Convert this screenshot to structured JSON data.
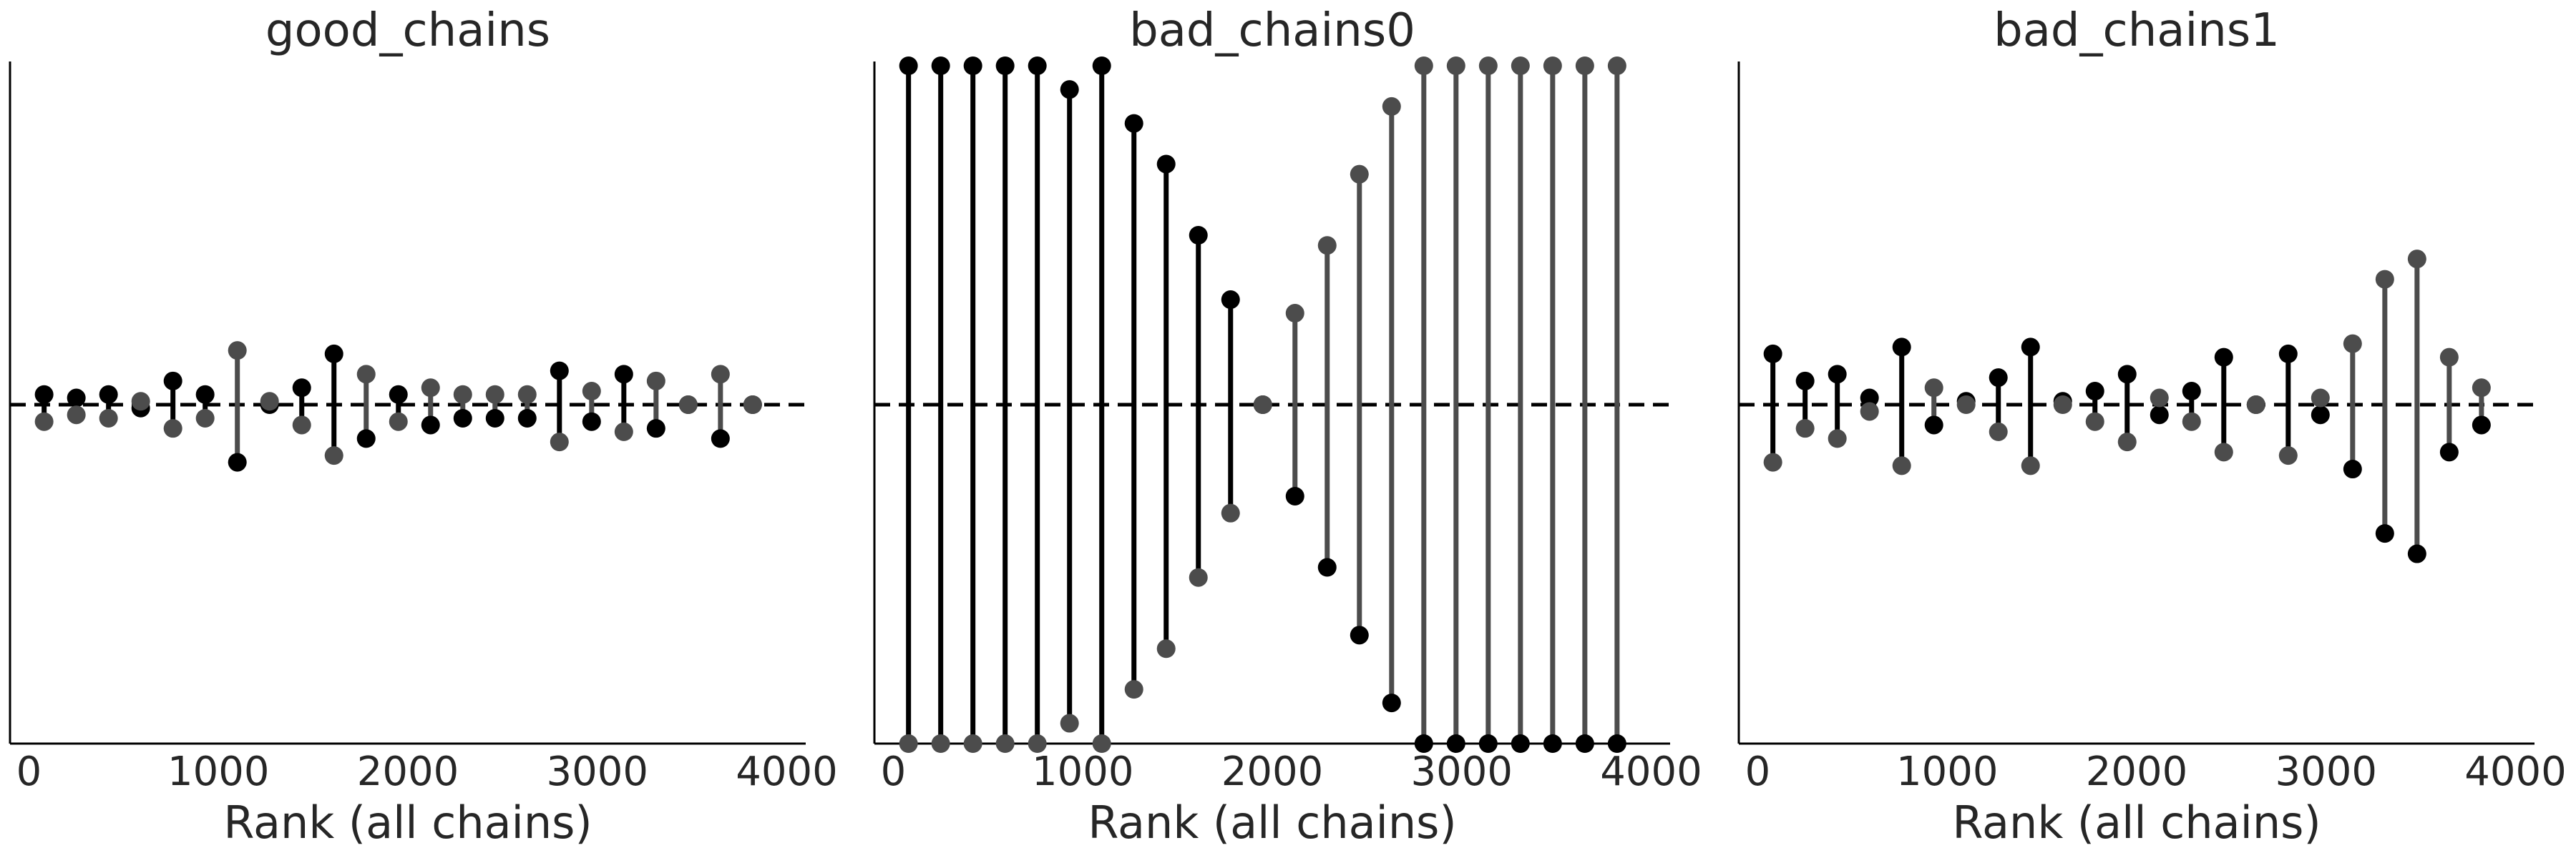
{
  "colors": {
    "chain0": "#000000",
    "chain1": "#4c4c4c",
    "reference": "#000000",
    "axis": "#000000",
    "text": "#262626"
  },
  "chart_data": [
    {
      "type": "scatter",
      "title": "good_chains",
      "xlabel": "Rank (all chains)",
      "ylabel": "",
      "xlim": [
        -100,
        4100
      ],
      "ylim": [
        -1,
        1
      ],
      "xticks": [
        "0",
        "1000",
        "2000",
        "3000",
        "4000"
      ],
      "reference_line": 0,
      "x": [
        80,
        250,
        420,
        590,
        760,
        930,
        1100,
        1270,
        1440,
        1610,
        1780,
        1950,
        2120,
        2290,
        2460,
        2630,
        2800,
        2970,
        3140,
        3310,
        3480,
        3650,
        3820
      ],
      "series": [
        {
          "values": [
            0.03,
            0.02,
            0.03,
            -0.01,
            0.07,
            0.03,
            -0.17,
            0.0,
            0.05,
            0.15,
            -0.1,
            0.03,
            -0.06,
            -0.04,
            -0.04,
            -0.04,
            0.1,
            -0.05,
            0.09,
            -0.07,
            0.0,
            -0.1,
            0.0
          ]
        },
        {
          "values": [
            -0.05,
            -0.03,
            -0.04,
            0.01,
            -0.07,
            -0.04,
            0.16,
            0.01,
            -0.06,
            -0.15,
            0.09,
            -0.05,
            0.05,
            0.03,
            0.03,
            0.03,
            -0.11,
            0.04,
            -0.08,
            0.07,
            0.0,
            0.09,
            0.0
          ]
        }
      ]
    },
    {
      "type": "scatter",
      "title": "bad_chains0",
      "xlabel": "Rank (all chains)",
      "ylabel": "",
      "xlim": [
        -100,
        4100
      ],
      "ylim": [
        -1,
        1
      ],
      "xticks": [
        "0",
        "1000",
        "2000",
        "3000",
        "4000"
      ],
      "reference_line": 0,
      "x": [
        80,
        250,
        420,
        590,
        760,
        930,
        1100,
        1270,
        1440,
        1610,
        1780,
        1950,
        2120,
        2290,
        2460,
        2630,
        2800,
        2970,
        3140,
        3310,
        3480,
        3650,
        3820
      ],
      "series": [
        {
          "values": [
            1.0,
            1.0,
            1.0,
            1.0,
            1.0,
            0.93,
            1.0,
            0.83,
            0.71,
            0.5,
            0.31,
            0.0,
            -0.27,
            -0.48,
            -0.68,
            -0.88,
            -1.0,
            -1.0,
            -1.0,
            -1.0,
            -1.0,
            -1.0,
            -1.0
          ]
        },
        {
          "values": [
            -1.0,
            -1.0,
            -1.0,
            -1.0,
            -1.0,
            -0.94,
            -1.0,
            -0.84,
            -0.72,
            -0.51,
            -0.32,
            0.0,
            0.27,
            0.47,
            0.68,
            0.88,
            1.0,
            1.0,
            1.0,
            1.0,
            1.0,
            1.0,
            1.0
          ]
        }
      ]
    },
    {
      "type": "scatter",
      "title": "bad_chains1",
      "xlabel": "Rank (all chains)",
      "ylabel": "",
      "xlim": [
        -100,
        4100
      ],
      "ylim": [
        -1,
        1
      ],
      "xticks": [
        "0",
        "1000",
        "2000",
        "3000",
        "4000"
      ],
      "reference_line": 0,
      "x": [
        80,
        250,
        420,
        590,
        760,
        930,
        1100,
        1270,
        1440,
        1610,
        1780,
        1950,
        2120,
        2290,
        2460,
        2630,
        2800,
        2970,
        3140,
        3310,
        3480,
        3650,
        3820
      ],
      "series": [
        {
          "values": [
            0.15,
            0.07,
            0.09,
            0.02,
            0.17,
            -0.06,
            0.01,
            0.08,
            0.17,
            0.01,
            0.04,
            0.09,
            -0.03,
            0.04,
            0.14,
            0.0,
            0.15,
            -0.03,
            -0.19,
            -0.38,
            -0.44,
            -0.14,
            -0.06
          ]
        },
        {
          "values": [
            -0.17,
            -0.07,
            -0.1,
            -0.02,
            -0.18,
            0.05,
            0.0,
            -0.08,
            -0.18,
            0.0,
            -0.05,
            -0.11,
            0.02,
            -0.05,
            -0.14,
            0.0,
            -0.15,
            0.02,
            0.18,
            0.37,
            0.43,
            0.14,
            0.05
          ]
        }
      ]
    }
  ]
}
